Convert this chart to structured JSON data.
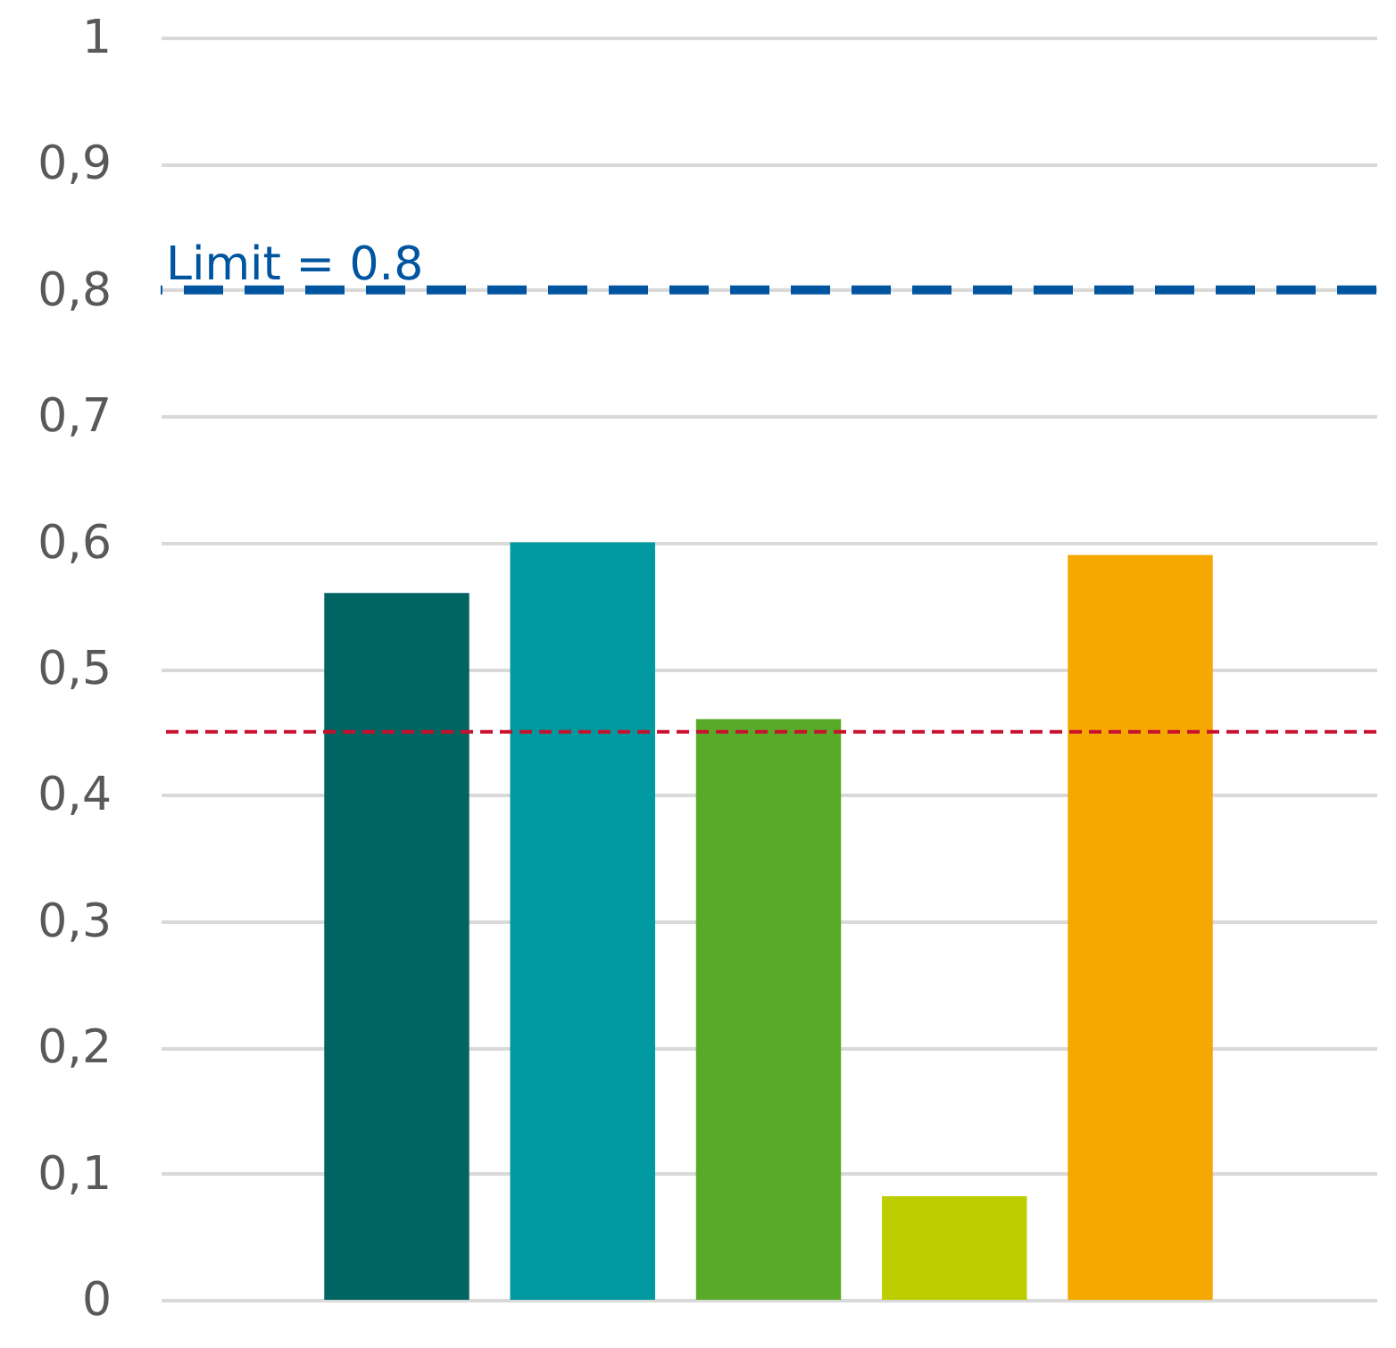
{
  "chart_data": {
    "type": "bar",
    "categories": [
      null,
      null,
      null,
      null,
      null
    ],
    "values": [
      0.56,
      0.6,
      0.46,
      0.082,
      0.59
    ],
    "colors": [
      "#006462",
      "#0099a0",
      "#5aaa2a",
      "#bccd00",
      "#f5a800"
    ],
    "ylim": [
      0,
      1
    ],
    "yticks": [
      0,
      {
        "value": 0.1,
        "label": "0,1"
      },
      {
        "value": 0.2,
        "label": "0,2"
      },
      {
        "value": 0.3,
        "label": "0,3"
      },
      {
        "value": 0.4,
        "label": "0,4"
      },
      {
        "value": 0.5,
        "label": "0,5"
      },
      {
        "value": 0.6,
        "label": "0,6"
      },
      {
        "value": 0.7,
        "label": "0,7"
      },
      {
        "value": 0.8,
        "label": "0,8"
      },
      {
        "value": 0.9,
        "label": "0,9"
      },
      1
    ],
    "grid": "y",
    "ref_lines": [
      {
        "axis": "y",
        "value": 0.8,
        "label": "Limit = 0.8",
        "color": "#0055a0",
        "line_style": "dashed"
      },
      {
        "axis": "y",
        "value": 0.45,
        "color": "#c8102e",
        "line_style": "dashed"
      }
    ]
  }
}
